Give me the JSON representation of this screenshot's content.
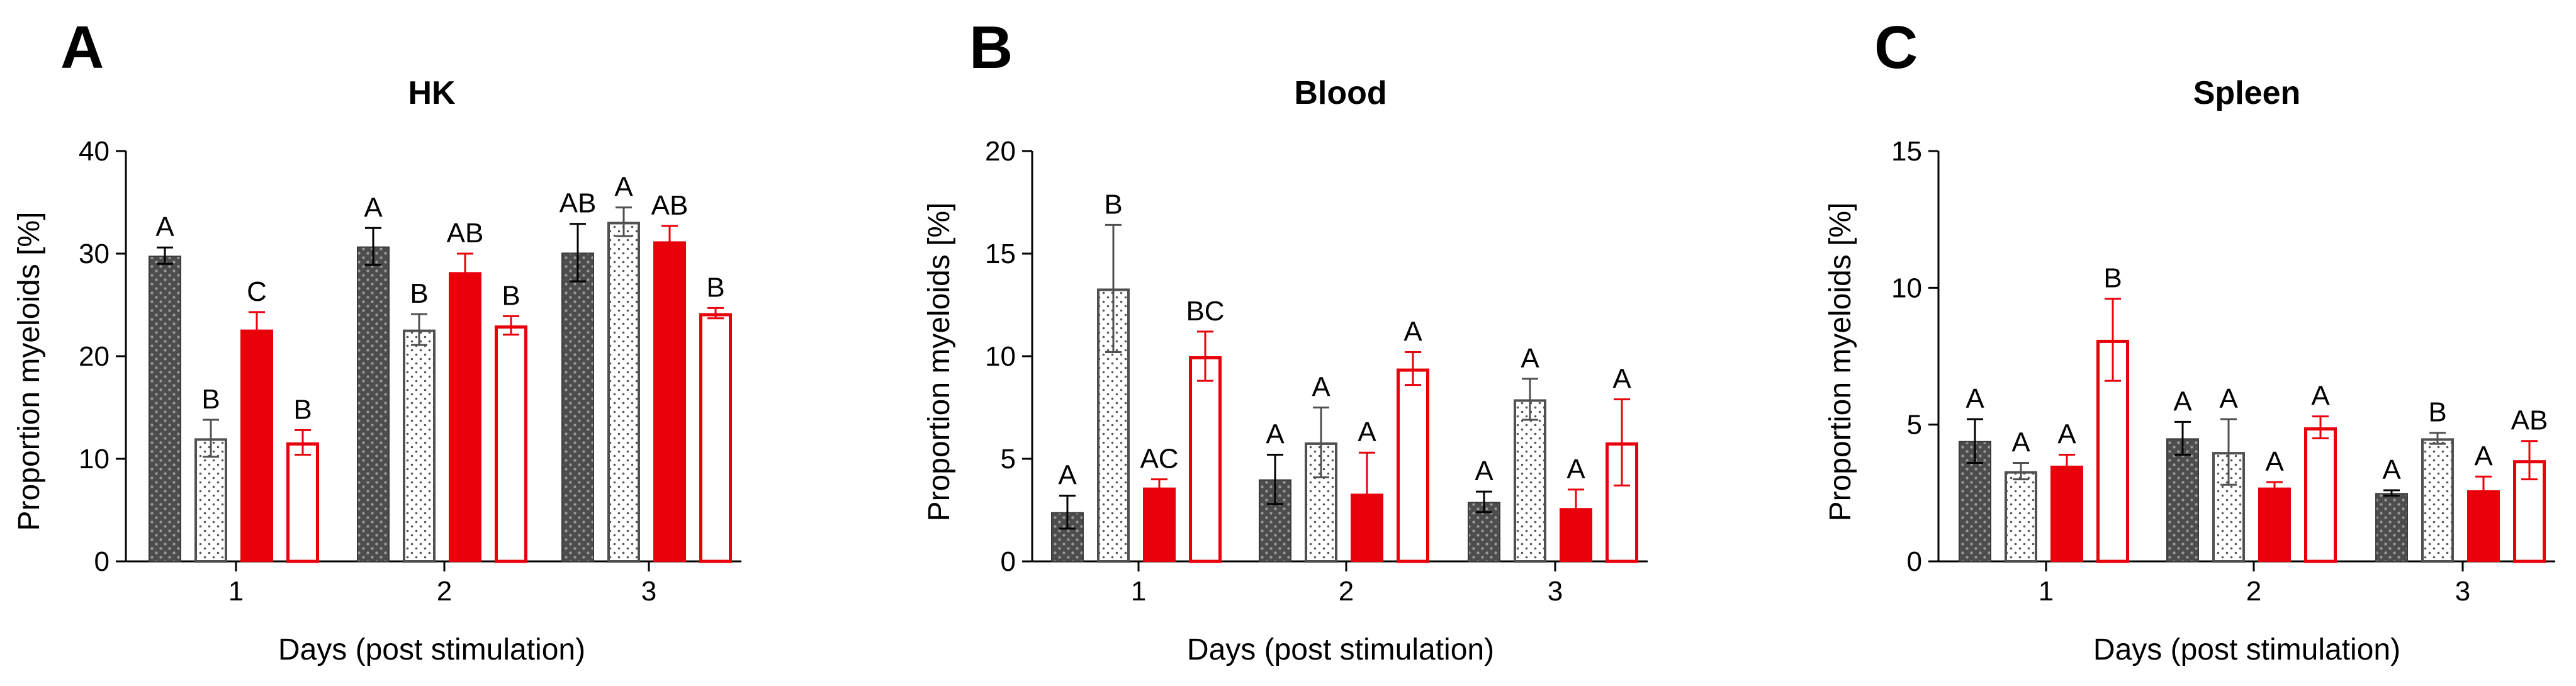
{
  "chart_data": [
    {
      "panel": "A",
      "type": "bar",
      "title": "HK",
      "xlabel": "Days (post stimulation)",
      "ylabel": "Proportion myeloids  [%]",
      "ylim": [
        0,
        40
      ],
      "yticks": [
        0,
        10,
        20,
        30,
        40
      ],
      "categories": [
        "1",
        "2",
        "3"
      ],
      "series": [
        {
          "style": "dark-dotted",
          "values": [
            29.8,
            30.7,
            30.1
          ],
          "errors": [
            0.8,
            1.8,
            2.8
          ],
          "labels": [
            "A",
            "A",
            "AB"
          ]
        },
        {
          "style": "light-dotted",
          "values": [
            12.0,
            22.6,
            33.1
          ],
          "errors": [
            1.8,
            1.5,
            1.4
          ],
          "labels": [
            "B",
            "B",
            "A"
          ]
        },
        {
          "style": "red-filled",
          "values": [
            22.6,
            28.2,
            31.2
          ],
          "errors": [
            1.7,
            1.8,
            1.5
          ],
          "labels": [
            "C",
            "AB",
            "AB"
          ]
        },
        {
          "style": "red-outline",
          "values": [
            11.6,
            23.0,
            24.2
          ],
          "errors": [
            1.2,
            0.9,
            0.5
          ],
          "labels": [
            "B",
            "B",
            "B"
          ]
        }
      ]
    },
    {
      "panel": "B",
      "type": "bar",
      "title": "Blood",
      "xlabel": "Days (post stimulation)",
      "ylabel": "Proportion myeloids [%]",
      "ylim": [
        0,
        20
      ],
      "yticks": [
        0,
        5,
        10,
        15,
        20
      ],
      "categories": [
        "1",
        "2",
        "3"
      ],
      "series": [
        {
          "style": "dark-dotted",
          "values": [
            2.4,
            4.0,
            2.9
          ],
          "errors": [
            0.8,
            1.2,
            0.5
          ],
          "labels": [
            "A",
            "A",
            "A"
          ]
        },
        {
          "style": "light-dotted",
          "values": [
            13.3,
            5.8,
            7.9
          ],
          "errors": [
            3.1,
            1.7,
            1.0
          ],
          "labels": [
            "B",
            "A",
            "A"
          ]
        },
        {
          "style": "red-filled",
          "values": [
            3.6,
            3.3,
            2.6
          ],
          "errors": [
            0.4,
            2.0,
            0.9
          ],
          "labels": [
            "AC",
            "A",
            "A"
          ]
        },
        {
          "style": "red-outline",
          "values": [
            10.0,
            9.4,
            5.8
          ],
          "errors": [
            1.2,
            0.8,
            2.1
          ],
          "labels": [
            "BC",
            "A",
            "A"
          ]
        }
      ]
    },
    {
      "panel": "C",
      "type": "bar",
      "title": "Spleen",
      "xlabel": "Days (post stimulation)",
      "ylabel": "Proportion myeloids [%]",
      "ylim": [
        0,
        15
      ],
      "yticks": [
        0,
        5,
        10,
        15
      ],
      "categories": [
        "1",
        "2",
        "3"
      ],
      "series": [
        {
          "style": "dark-dotted",
          "values": [
            4.4,
            4.5,
            2.5
          ],
          "errors": [
            0.8,
            0.6,
            0.1
          ],
          "labels": [
            "A",
            "A",
            "A"
          ]
        },
        {
          "style": "light-dotted",
          "values": [
            3.3,
            4.0,
            4.5
          ],
          "errors": [
            0.3,
            1.2,
            0.2
          ],
          "labels": [
            "A",
            "A",
            "B"
          ]
        },
        {
          "style": "red-filled",
          "values": [
            3.5,
            2.7,
            2.6
          ],
          "errors": [
            0.4,
            0.2,
            0.5
          ],
          "labels": [
            "A",
            "A",
            "A"
          ]
        },
        {
          "style": "red-outline",
          "values": [
            8.1,
            4.9,
            3.7
          ],
          "errors": [
            1.5,
            0.4,
            0.7
          ],
          "labels": [
            "B",
            "A",
            "AB"
          ]
        }
      ]
    }
  ],
  "colors": {
    "dark_fill": "#4d4d4d",
    "dark_dot": "#9a9a9a",
    "dark_error": "#000000",
    "light_fill": "#ffffff",
    "light_dot": "#555555",
    "light_stroke": "#505050",
    "red": "#e8000b",
    "axis": "#000000"
  }
}
